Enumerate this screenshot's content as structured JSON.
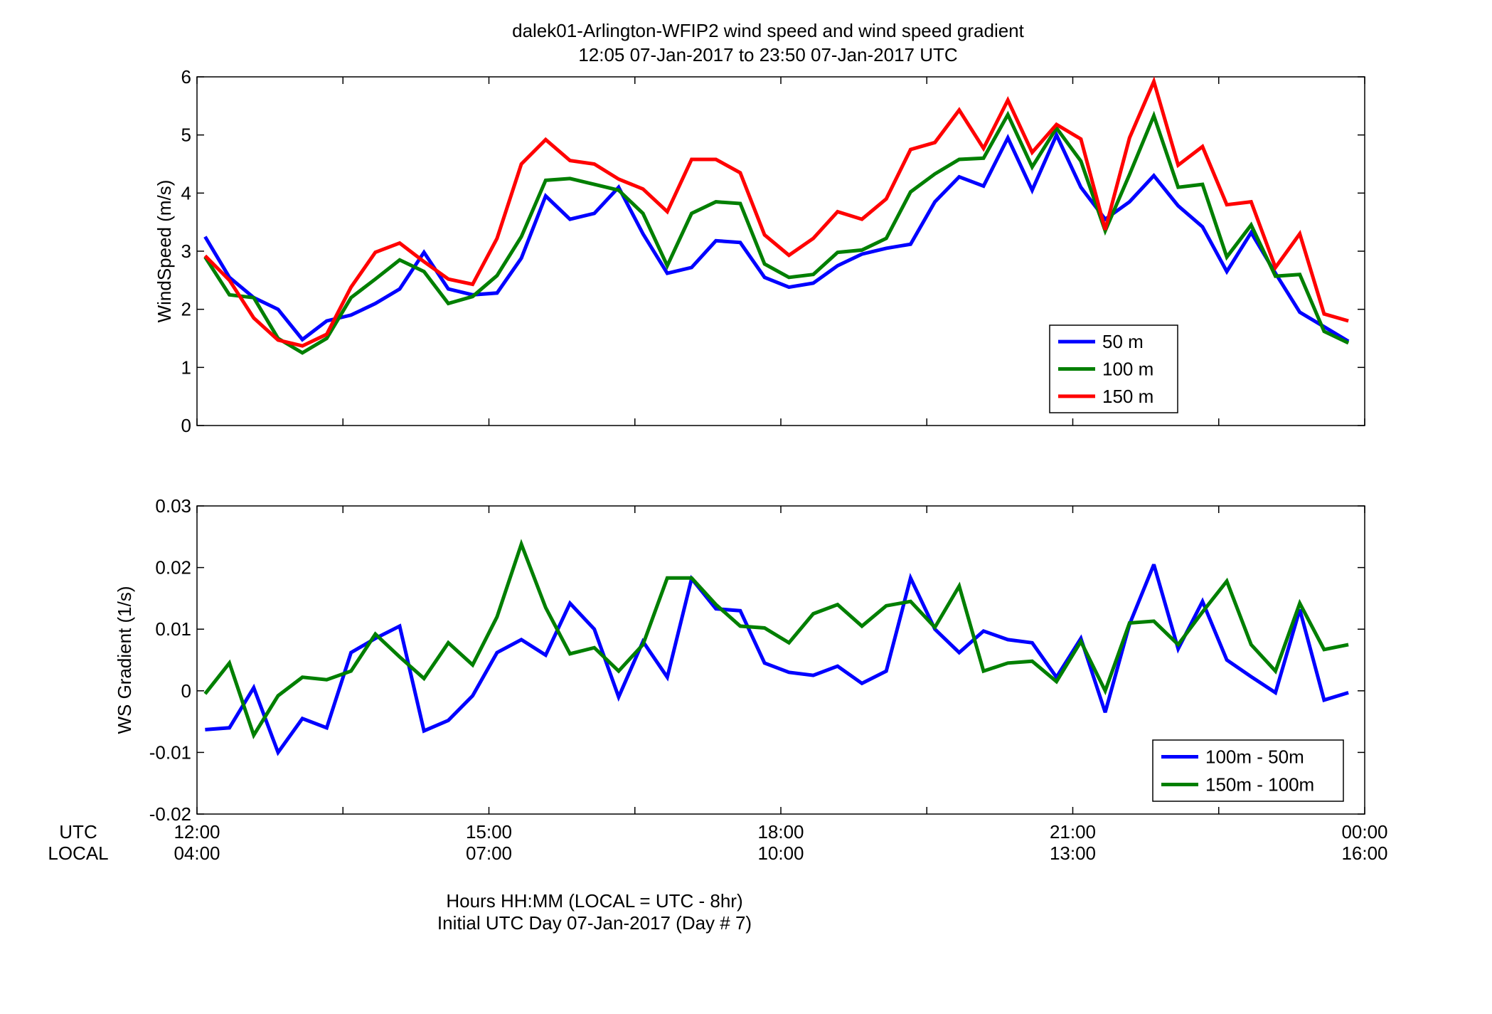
{
  "figure": {
    "title_line1": "dalek01-Arlington-WFIP2  wind speed and wind speed gradient",
    "title_line2": "12:05 07-Jan-2017 to 23:50 07-Jan-2017  UTC",
    "xlabel_line1": "Hours HH:MM  (LOCAL = UTC - 8hr)",
    "xlabel_line2": "Initial UTC Day 07-Jan-2017 (Day # 7)",
    "row_label_utc": "UTC",
    "row_label_local": "LOCAL",
    "x_ticks_utc": [
      "12:00",
      "15:00",
      "18:00",
      "21:00",
      "00:00"
    ],
    "x_ticks_local": [
      "04:00",
      "07:00",
      "10:00",
      "13:00",
      "16:00"
    ]
  },
  "chart_data": [
    {
      "type": "line",
      "ylabel": "WindSpeed (m/s)",
      "xlim": [
        12,
        24
      ],
      "ylim": [
        0,
        6
      ],
      "yticks": [
        "0",
        "1",
        "2",
        "3",
        "4",
        "5",
        "6"
      ],
      "legend_position": "lower-right",
      "x": [
        12.083,
        12.333,
        12.583,
        12.833,
        13.083,
        13.333,
        13.583,
        13.833,
        14.083,
        14.333,
        14.583,
        14.833,
        15.083,
        15.333,
        15.583,
        15.833,
        16.083,
        16.333,
        16.583,
        16.833,
        17.083,
        17.333,
        17.583,
        17.833,
        18.083,
        18.333,
        18.583,
        18.833,
        19.083,
        19.333,
        19.583,
        19.833,
        20.083,
        20.333,
        20.583,
        20.833,
        21.083,
        21.333,
        21.583,
        21.833,
        22.083,
        22.333,
        22.583,
        22.833,
        23.083,
        23.333,
        23.583,
        23.833
      ],
      "series": [
        {
          "name": "50 m",
          "color": "#0000ff",
          "values": [
            3.25,
            2.55,
            2.2,
            2.0,
            1.48,
            1.8,
            1.9,
            2.1,
            2.35,
            2.98,
            2.35,
            2.25,
            2.28,
            2.88,
            3.95,
            3.55,
            3.65,
            4.1,
            3.3,
            2.62,
            2.72,
            3.18,
            3.15,
            2.55,
            2.38,
            2.45,
            2.75,
            2.95,
            3.05,
            3.12,
            3.85,
            4.28,
            4.12,
            4.95,
            4.05,
            5.0,
            4.1,
            3.55,
            3.85,
            4.3,
            3.78,
            3.42,
            2.65,
            3.32,
            2.62,
            1.95,
            1.7,
            1.45
          ]
        },
        {
          "name": "100 m",
          "color": "#007f00",
          "values": [
            2.9,
            2.25,
            2.2,
            1.5,
            1.25,
            1.5,
            2.2,
            2.52,
            2.85,
            2.65,
            2.1,
            2.22,
            2.58,
            3.25,
            4.22,
            4.25,
            4.15,
            4.05,
            3.65,
            2.75,
            3.65,
            3.85,
            3.82,
            2.78,
            2.55,
            2.6,
            2.98,
            3.02,
            3.22,
            4.02,
            4.33,
            4.58,
            4.6,
            5.35,
            4.45,
            5.12,
            4.55,
            3.35,
            4.32,
            5.33,
            4.1,
            4.15,
            2.9,
            3.45,
            2.57,
            2.6,
            1.62,
            1.42
          ]
        },
        {
          "name": "150 m",
          "color": "#ff0000",
          "values": [
            2.92,
            2.5,
            1.85,
            1.47,
            1.37,
            1.57,
            2.38,
            2.98,
            3.14,
            2.82,
            2.52,
            2.43,
            3.22,
            4.5,
            4.92,
            4.56,
            4.5,
            4.24,
            4.07,
            3.68,
            4.58,
            4.58,
            4.35,
            3.28,
            2.93,
            3.22,
            3.68,
            3.55,
            3.9,
            4.75,
            4.87,
            5.43,
            4.77,
            5.6,
            4.7,
            5.18,
            4.93,
            3.37,
            4.95,
            5.92,
            4.48,
            4.8,
            3.8,
            3.85,
            2.72,
            3.3,
            1.92,
            1.8
          ]
        }
      ]
    },
    {
      "type": "line",
      "ylabel": "WS Gradient (1/s)",
      "xlim": [
        12,
        24
      ],
      "ylim": [
        -0.02,
        0.03
      ],
      "yticks": [
        "-0.02",
        "-0.01",
        "0",
        "0.01",
        "0.02",
        "0.03"
      ],
      "legend_position": "lower-right",
      "x": [
        12.083,
        12.333,
        12.583,
        12.833,
        13.083,
        13.333,
        13.583,
        13.833,
        14.083,
        14.333,
        14.583,
        14.833,
        15.083,
        15.333,
        15.583,
        15.833,
        16.083,
        16.333,
        16.583,
        16.833,
        17.083,
        17.333,
        17.583,
        17.833,
        18.083,
        18.333,
        18.583,
        18.833,
        19.083,
        19.333,
        19.583,
        19.833,
        20.083,
        20.333,
        20.583,
        20.833,
        21.083,
        21.333,
        21.583,
        21.833,
        22.083,
        22.333,
        22.583,
        22.833,
        23.083,
        23.333,
        23.583,
        23.833
      ],
      "series": [
        {
          "name": "100m - 50m",
          "color": "#0000ff",
          "values": [
            -0.0063,
            -0.006,
            0.0005,
            -0.01,
            -0.0045,
            -0.006,
            0.0062,
            0.0085,
            0.0105,
            -0.0065,
            -0.0048,
            -0.0008,
            0.0062,
            0.0083,
            0.0058,
            0.0142,
            0.01,
            -0.001,
            0.008,
            0.0022,
            0.0182,
            0.0133,
            0.013,
            0.0045,
            0.003,
            0.0025,
            0.004,
            0.0012,
            0.0032,
            0.0183,
            0.01,
            0.0062,
            0.0097,
            0.0083,
            0.0078,
            0.0022,
            0.0085,
            -0.0035,
            0.0108,
            0.0205,
            0.0068,
            0.0145,
            0.005,
            0.0023,
            -0.0003,
            0.0132,
            -0.0015,
            -0.0003
          ]
        },
        {
          "name": "150m - 100m",
          "color": "#007f00",
          "values": [
            -0.0005,
            0.0045,
            -0.0072,
            -0.0008,
            0.0022,
            0.0018,
            0.0032,
            0.0092,
            0.0055,
            0.002,
            0.0078,
            0.0042,
            0.012,
            0.0238,
            0.0135,
            0.006,
            0.007,
            0.0032,
            0.0075,
            0.0183,
            0.0183,
            0.014,
            0.0105,
            0.0102,
            0.0078,
            0.0125,
            0.014,
            0.0105,
            0.0138,
            0.0145,
            0.0103,
            0.017,
            0.0032,
            0.0045,
            0.0048,
            0.0015,
            0.008,
            0.0,
            0.011,
            0.0113,
            0.0075,
            0.0128,
            0.0178,
            0.0075,
            0.0032,
            0.0142,
            0.0067,
            0.0075
          ]
        }
      ]
    }
  ]
}
